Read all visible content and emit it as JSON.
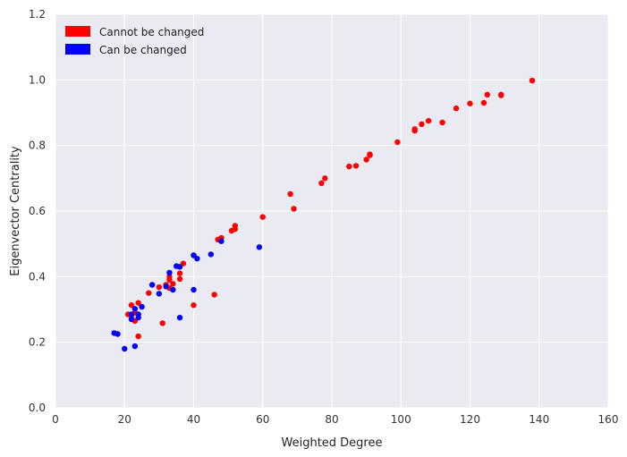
{
  "chart_data": {
    "type": "scatter",
    "xlabel": "Weighted Degree",
    "ylabel": "Eigenvector Centrality",
    "xlim": [
      0,
      160
    ],
    "ylim": [
      0.0,
      1.2
    ],
    "x_ticks": [
      "0",
      "20",
      "40",
      "60",
      "80",
      "100",
      "120",
      "140",
      "160"
    ],
    "y_ticks": [
      "0.0",
      "0.2",
      "0.4",
      "0.6",
      "0.8",
      "1.0",
      "1.2"
    ],
    "grid": true,
    "background": "#EAEAF2",
    "legend_position": "top-left",
    "series": [
      {
        "name": "Cannot be changed",
        "color": "#FF0000",
        "points": [
          [
            21,
            0.285
          ],
          [
            22,
            0.313
          ],
          [
            22,
            0.28
          ],
          [
            23,
            0.265
          ],
          [
            23,
            0.29
          ],
          [
            24,
            0.32
          ],
          [
            24,
            0.218
          ],
          [
            27,
            0.35
          ],
          [
            30,
            0.368
          ],
          [
            31,
            0.258
          ],
          [
            32,
            0.375
          ],
          [
            33,
            0.365
          ],
          [
            33,
            0.39
          ],
          [
            33,
            0.4
          ],
          [
            34,
            0.378
          ],
          [
            36,
            0.41
          ],
          [
            36,
            0.393
          ],
          [
            37,
            0.44
          ],
          [
            40,
            0.313
          ],
          [
            40,
            0.465
          ],
          [
            46,
            0.345
          ],
          [
            47,
            0.513
          ],
          [
            48,
            0.518
          ],
          [
            51,
            0.54
          ],
          [
            52,
            0.545
          ],
          [
            52,
            0.555
          ],
          [
            60,
            0.582
          ],
          [
            68,
            0.652
          ],
          [
            69,
            0.607
          ],
          [
            77,
            0.685
          ],
          [
            78,
            0.7
          ],
          [
            85,
            0.736
          ],
          [
            87,
            0.738
          ],
          [
            90,
            0.757
          ],
          [
            91,
            0.77
          ],
          [
            91,
            0.773
          ],
          [
            99,
            0.81
          ],
          [
            104,
            0.845
          ],
          [
            104,
            0.85
          ],
          [
            106,
            0.865
          ],
          [
            108,
            0.875
          ],
          [
            112,
            0.87
          ],
          [
            116,
            0.913
          ],
          [
            120,
            0.928
          ],
          [
            124,
            0.93
          ],
          [
            125,
            0.955
          ],
          [
            129,
            0.953
          ],
          [
            129,
            0.955
          ],
          [
            138,
            0.998
          ]
        ]
      },
      {
        "name": "Can be changed",
        "color": "#0000FF",
        "points": [
          [
            17,
            0.228
          ],
          [
            18,
            0.225
          ],
          [
            20,
            0.18
          ],
          [
            22,
            0.285
          ],
          [
            22,
            0.27
          ],
          [
            23,
            0.188
          ],
          [
            23,
            0.302
          ],
          [
            24,
            0.275
          ],
          [
            24,
            0.285
          ],
          [
            25,
            0.308
          ],
          [
            28,
            0.375
          ],
          [
            30,
            0.348
          ],
          [
            32,
            0.37
          ],
          [
            33,
            0.412
          ],
          [
            34,
            0.36
          ],
          [
            35,
            0.432
          ],
          [
            36,
            0.43
          ],
          [
            36,
            0.275
          ],
          [
            40,
            0.36
          ],
          [
            40,
            0.465
          ],
          [
            41,
            0.455
          ],
          [
            45,
            0.468
          ],
          [
            48,
            0.508
          ],
          [
            59,
            0.49
          ]
        ]
      }
    ]
  }
}
